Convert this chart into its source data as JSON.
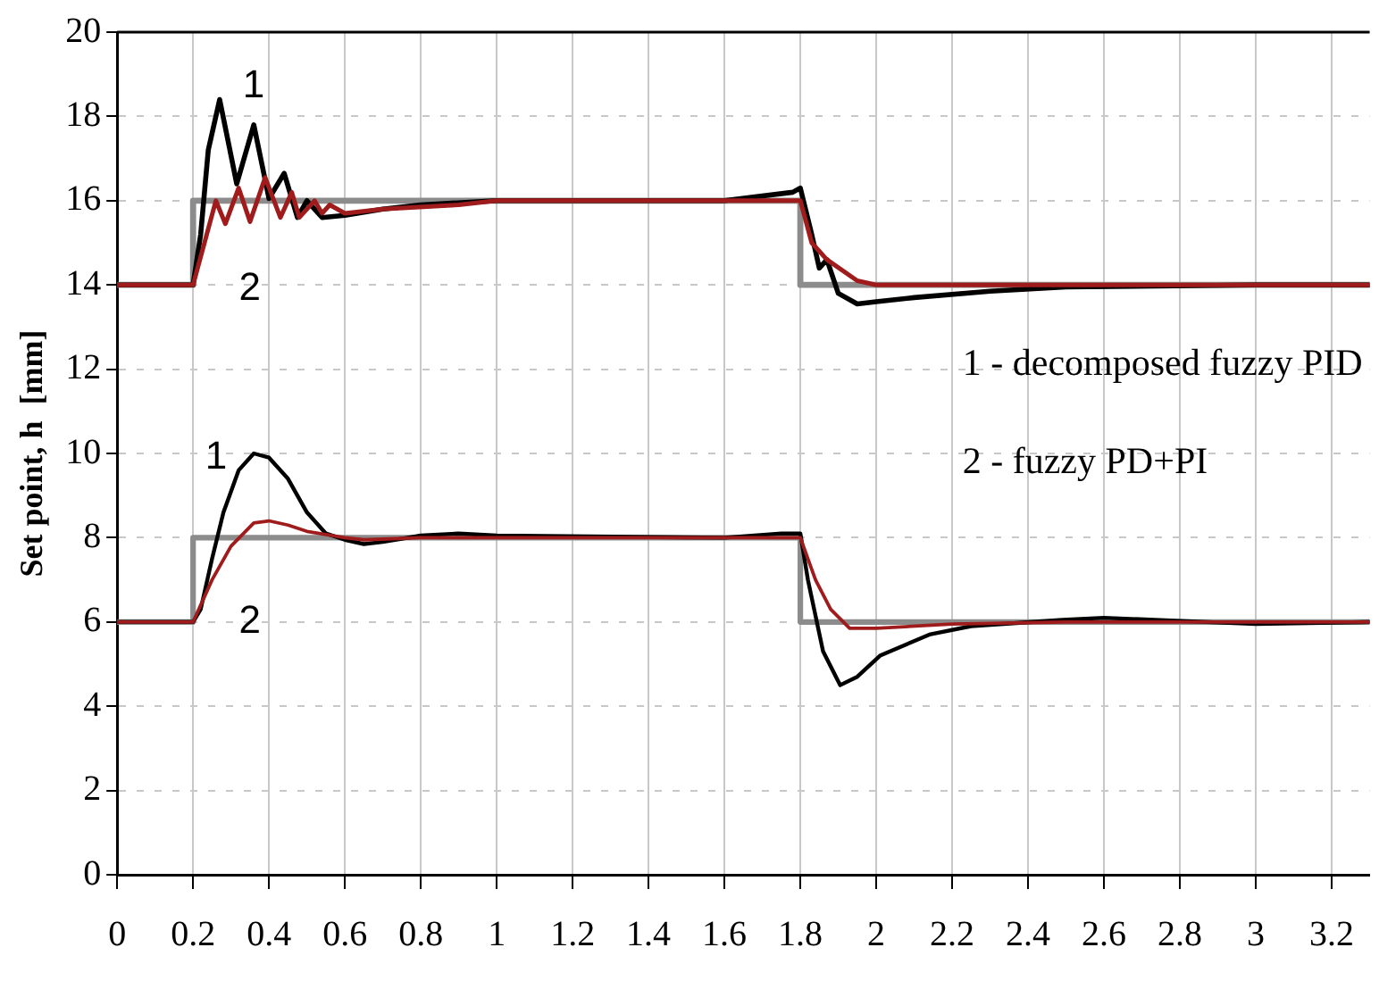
{
  "chart_data": {
    "type": "line",
    "ylabel": "Set point, h  [mm]",
    "xlim": [
      0,
      3.3
    ],
    "ylim": [
      0,
      20
    ],
    "xticks": [
      0,
      0.2,
      0.4,
      0.6,
      0.8,
      1,
      1.2,
      1.4,
      1.6,
      1.8,
      2,
      2.2,
      2.4,
      2.6,
      2.8,
      3,
      3.2
    ],
    "yticks": [
      0,
      2,
      4,
      6,
      8,
      10,
      12,
      14,
      16,
      18,
      20
    ],
    "grid": true,
    "legend": false,
    "marker": "none",
    "line_style": "solid",
    "annotations": [
      "1",
      "2",
      "1",
      "2",
      "1 - decomposed fuzzy PID",
      "2 - fuzzy PD+PI"
    ],
    "series": [
      {
        "color": "#8c8c8c",
        "x": [
          0,
          0.2,
          0.2,
          1.8,
          1.8,
          3.3
        ],
        "values": [
          14,
          14,
          16,
          16,
          14,
          14
        ]
      },
      {
        "color": "#8c8c8c",
        "x": [
          0,
          0.2,
          0.2,
          1.8,
          1.8,
          3.3
        ],
        "values": [
          6,
          6,
          8,
          8,
          6,
          6
        ]
      },
      {
        "color": "#000000",
        "x": [
          0,
          0.2,
          0.22,
          0.24,
          0.27,
          0.315,
          0.36,
          0.4,
          0.44,
          0.475,
          0.5,
          0.54,
          0.6,
          0.7,
          0.8,
          1.0,
          1.2,
          1.6,
          1.78,
          1.8,
          1.83,
          1.85,
          1.87,
          1.9,
          1.95,
          2.0,
          2.1,
          2.3,
          2.5,
          3.0,
          3.3
        ],
        "values": [
          14,
          14,
          15.2,
          17.2,
          18.4,
          16.4,
          17.8,
          16.05,
          16.65,
          15.6,
          16.0,
          15.6,
          15.65,
          15.8,
          15.9,
          16.0,
          16.0,
          16.0,
          16.2,
          16.3,
          15.2,
          14.4,
          14.6,
          13.8,
          13.55,
          13.6,
          13.7,
          13.85,
          13.95,
          14.0,
          14.0
        ]
      },
      {
        "color": "#a01c1c",
        "x": [
          0,
          0.2,
          0.23,
          0.26,
          0.285,
          0.32,
          0.35,
          0.39,
          0.43,
          0.46,
          0.48,
          0.52,
          0.54,
          0.56,
          0.6,
          0.7,
          0.9,
          1.0,
          1.6,
          1.8,
          1.83,
          1.87,
          1.95,
          2.0,
          2.5,
          3.3
        ],
        "values": [
          14,
          14,
          15.0,
          16.0,
          15.45,
          16.3,
          15.5,
          16.55,
          15.6,
          16.2,
          15.6,
          16.0,
          15.7,
          15.9,
          15.7,
          15.8,
          15.9,
          16.0,
          16.0,
          16.0,
          15.0,
          14.6,
          14.1,
          14.0,
          14.0,
          14.0
        ]
      },
      {
        "color": "#000000",
        "x": [
          0,
          0.2,
          0.22,
          0.25,
          0.28,
          0.32,
          0.36,
          0.4,
          0.45,
          0.5,
          0.55,
          0.6,
          0.65,
          0.7,
          0.8,
          0.9,
          1.0,
          1.6,
          1.75,
          1.8,
          1.82,
          1.86,
          1.905,
          1.95,
          2.01,
          2.14,
          2.25,
          2.49,
          2.6,
          3.0,
          3.3
        ],
        "values": [
          6,
          6,
          6.3,
          7.5,
          8.6,
          9.6,
          10.0,
          9.9,
          9.4,
          8.6,
          8.1,
          7.95,
          7.85,
          7.9,
          8.05,
          8.1,
          8.05,
          8.0,
          8.1,
          8.1,
          7.0,
          5.3,
          4.5,
          4.7,
          5.2,
          5.7,
          5.9,
          6.05,
          6.1,
          5.95,
          6.0
        ]
      },
      {
        "color": "#a01c1c",
        "x": [
          0,
          0.2,
          0.25,
          0.3,
          0.36,
          0.4,
          0.45,
          0.5,
          0.6,
          0.65,
          0.8,
          1.6,
          1.8,
          1.84,
          1.88,
          1.93,
          2.0,
          2.2,
          2.5,
          3.3
        ],
        "values": [
          6,
          6,
          7.0,
          7.8,
          8.35,
          8.4,
          8.3,
          8.15,
          8.0,
          7.95,
          8.0,
          8.0,
          8.0,
          7.0,
          6.3,
          5.85,
          5.85,
          5.95,
          6.0,
          6.0
        ]
      }
    ]
  }
}
